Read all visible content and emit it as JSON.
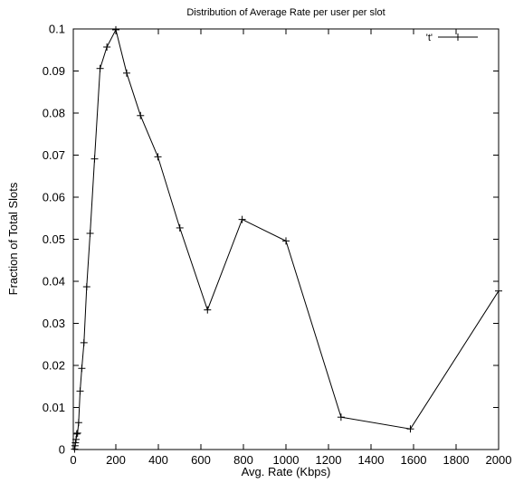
{
  "chart_data": {
    "type": "line",
    "title": "Distribution of Average Rate per user per slot",
    "xlabel": "Avg. Rate (Kbps)",
    "ylabel": "Fraction of Total Slots",
    "xlim": [
      0,
      2000
    ],
    "ylim": [
      0,
      0.1
    ],
    "xticks": [
      "0",
      "200",
      "400",
      "600",
      "800",
      "1000",
      "1200",
      "1400",
      "1600",
      "1800",
      "2000"
    ],
    "yticks": [
      "0",
      "0.01",
      "0.02",
      "0.03",
      "0.04",
      "0.05",
      "0.06",
      "0.07",
      "0.08",
      "0.09",
      "0.1"
    ],
    "grid": false,
    "legend_position": "top-right",
    "series": [
      {
        "name": "'t'",
        "color": "#000000",
        "marker": "plus",
        "x": [
          6,
          8,
          10,
          13,
          16,
          20,
          25,
          32,
          40,
          50,
          63,
          79,
          100,
          126,
          158,
          200,
          251,
          316,
          398,
          501,
          631,
          794,
          1000,
          1259,
          1585,
          2000
        ],
        "y": [
          0.0001,
          0.0009,
          0.0016,
          0.0024,
          0.0037,
          0.0039,
          0.0064,
          0.0139,
          0.0193,
          0.0254,
          0.0387,
          0.0514,
          0.0691,
          0.0906,
          0.0957,
          0.0998,
          0.0895,
          0.0794,
          0.0696,
          0.0527,
          0.0332,
          0.0547,
          0.0496,
          0.0077,
          0.0049,
          0.0377
        ]
      }
    ]
  }
}
